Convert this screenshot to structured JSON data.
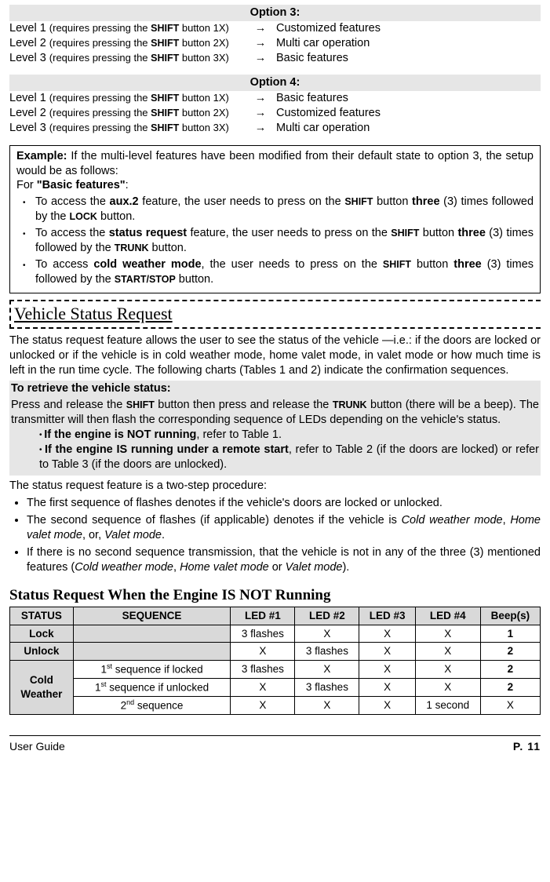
{
  "options": [
    {
      "header": "Option 3:",
      "levels": [
        {
          "left_a": "Level 1 ",
          "left_b": "(requires pressing the ",
          "btn": "SHIFT",
          "left_c": " button 1X)",
          "right": "Customized features"
        },
        {
          "left_a": "Level 2 ",
          "left_b": "(requires pressing the ",
          "btn": "SHIFT",
          "left_c": " button 2X)",
          "right": "Multi car operation"
        },
        {
          "left_a": "Level 3 ",
          "left_b": "(requires pressing the ",
          "btn": "SHIFT",
          "left_c": " button 3X)",
          "right": "Basic features"
        }
      ]
    },
    {
      "header": "Option 4:",
      "levels": [
        {
          "left_a": "Level 1 ",
          "left_b": "(requires pressing the ",
          "btn": "SHIFT",
          "left_c": " button 1X)",
          "right": "Basic features"
        },
        {
          "left_a": "Level 2 ",
          "left_b": "(requires pressing the ",
          "btn": "SHIFT",
          "left_c": " button 2X)",
          "right": "Customized features"
        },
        {
          "left_a": "Level 3 ",
          "left_b": "(requires pressing the ",
          "btn": "SHIFT",
          "left_c": " button 3X)",
          "right": "Multi car operation"
        }
      ]
    }
  ],
  "arrow_glyph": "→",
  "example": {
    "lead_b": "Example:",
    "lead_rest": " If the multi-level features have been modified from their default state to option 3, the setup would be as follows:",
    "for_txt": "For ",
    "for_bold": "\"Basic features\"",
    "colon": ":",
    "items": [
      {
        "pre": "To access the ",
        "b1": "aux.2",
        "mid": " feature, the user needs to press on the ",
        "btn": "SHIFT",
        "post1": " button ",
        "b2": "three",
        "post2": " (3) times followed by the ",
        "btn2": "LOCK",
        "post3": " button."
      },
      {
        "pre": "To access the ",
        "b1": "status request",
        "mid": " feature, the user needs to press on the ",
        "btn": "SHIFT",
        "post1": " button ",
        "b2": "three",
        "post2": " (3) times followed by the ",
        "btn2": "TRUNK",
        "post3": " button."
      },
      {
        "pre": "To access ",
        "b1": "cold weather mode",
        "mid": ", the user needs to press on the ",
        "btn": "SHIFT",
        "post1": " button ",
        "b2": "three",
        "post2": " (3) times followed by the ",
        "btn2": "START/STOP",
        "post3": " button."
      }
    ]
  },
  "section_title": "Vehicle Status Request",
  "para1": "The status request feature allows the user to see the status of the vehicle —i.e.: if the doors are locked or unlocked or if the vehicle is in cold weather mode, home valet mode, in valet mode or how much time is left in the run time cycle. The following charts (Tables 1 and 2) indicate the confirmation sequences.",
  "retrieve_hdr": "To retrieve the vehicle status:",
  "retrieve_body_a": "Press and release the ",
  "retrieve_btn1": "SHIFT",
  "retrieve_body_b": " button then press and release the ",
  "retrieve_btn2": "TRUNK",
  "retrieve_body_c": " button (there will be a beep). The transmitter will then flash the corresponding sequence of LEDs depending on the vehicle's status.",
  "sub_b1_b": "If the engine is NOT running",
  "sub_b1_r": ", refer to Table 1.",
  "sub_b2_b": "If the engine IS running under a remote start",
  "sub_b2_r": ", refer to Table 2 (if the doors are locked) or refer to Table 3 (if the doors are unlocked).",
  "para2": "The status request feature is a two-step procedure:",
  "bullets2": [
    "The first sequence of flashes denotes if the vehicle's doors are locked or unlocked.",
    {
      "a": "The second sequence of flashes (if applicable) denotes if the vehicle is ",
      "i1": "Cold weather mode",
      "b": ", ",
      "i2": "Home valet mode",
      "c": ", or, ",
      "i3": "Valet mode",
      "d": "."
    },
    {
      "a": "If there is no second sequence transmission, that the vehicle is not in any of the three (3) mentioned features (",
      "i1": "Cold weather mode",
      "b": ", ",
      "i2": "Home valet mode",
      "c": " or ",
      "i3": "Valet mode",
      "d": ")."
    }
  ],
  "sub_heading": "Status Request When the Engine IS NOT Running",
  "table": {
    "headers": [
      "STATUS",
      "SEQUENCE",
      "LED #1",
      "LED #2",
      "LED #3",
      "LED #4",
      "Beep(s)"
    ],
    "lock_row": [
      "Lock",
      "",
      "3 flashes",
      "X",
      "X",
      "X",
      "1"
    ],
    "unlock_row": [
      "Unlock",
      "",
      "X",
      "3 flashes",
      "X",
      "X",
      "2"
    ],
    "cw_label": "Cold Weather",
    "cw_rows": [
      {
        "seq_a": "1",
        "seq_sup": "st",
        "seq_b": " sequence if locked",
        "cells": [
          "3 flashes",
          "X",
          "X",
          "X",
          "2"
        ]
      },
      {
        "seq_a": "1",
        "seq_sup": "st",
        "seq_b": " sequence if unlocked",
        "cells": [
          "X",
          "3 flashes",
          "X",
          "X",
          "2"
        ]
      },
      {
        "seq_a": "2",
        "seq_sup": "nd",
        "seq_b": " sequence",
        "cells": [
          "X",
          "X",
          "X",
          "1 second",
          "X"
        ]
      }
    ]
  },
  "footer_left": "User Guide",
  "footer_right": "P. 11"
}
